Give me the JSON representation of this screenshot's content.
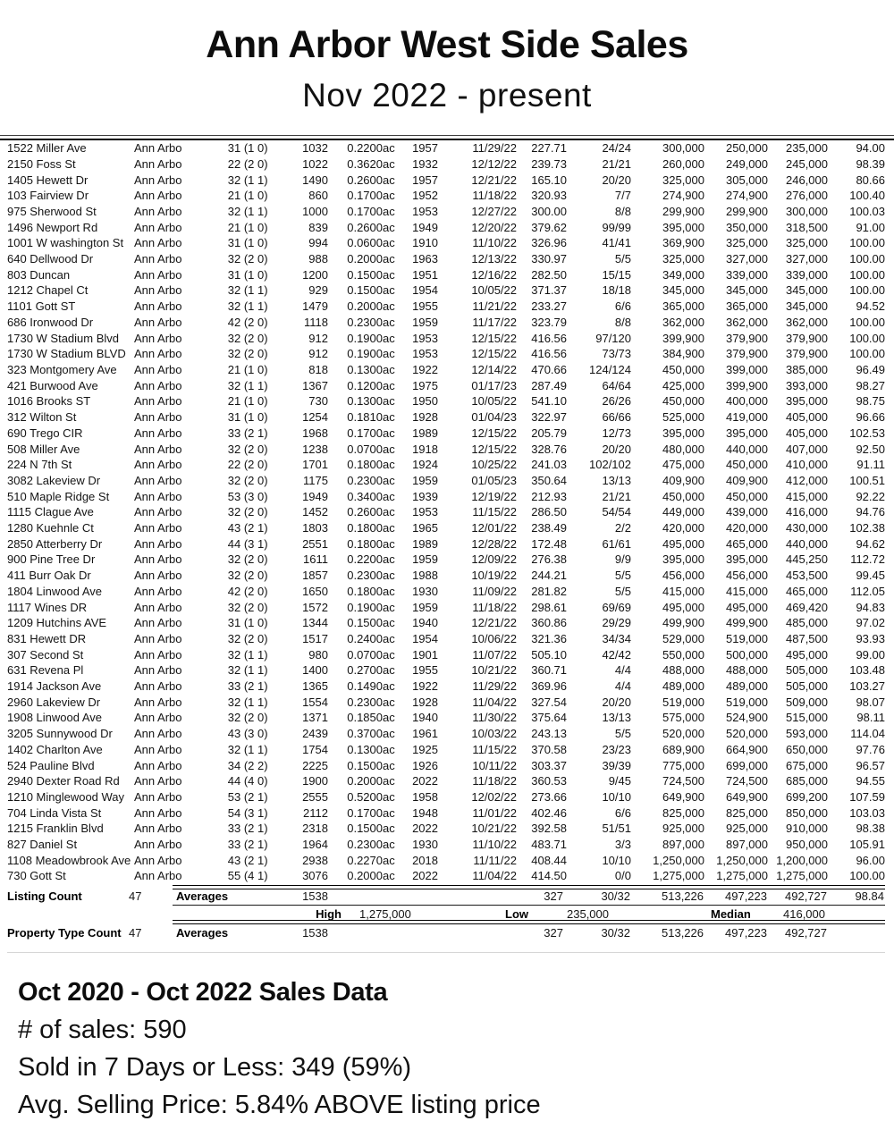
{
  "header": {
    "title": "Ann Arbor West Side Sales",
    "subtitle": "Nov 2022 - present"
  },
  "colors": {
    "text": "#000000",
    "rule": "#000000",
    "faint_rule": "#d6d6d6",
    "background": "#ffffff"
  },
  "table": {
    "columns": [
      "address",
      "city",
      "beds",
      "baths",
      "sqft",
      "acres",
      "acres-unit",
      "year-built",
      "sale-date",
      "price-per-sqft",
      "dom",
      "original-price",
      "list-price",
      "sold-price",
      "sold-pct"
    ],
    "rows": [
      [
        "1522 Miller Ave",
        "Ann Arbo",
        "3",
        "1 (1 0)",
        "1032",
        "0.2200",
        "ac",
        "1957",
        "11/29/22",
        "227.71",
        "24/24",
        "300,000",
        "250,000",
        "235,000",
        "94.00"
      ],
      [
        "2150 Foss St",
        "Ann Arbo",
        "2",
        "2 (2 0)",
        "1022",
        "0.3620",
        "ac",
        "1932",
        "12/12/22",
        "239.73",
        "21/21",
        "260,000",
        "249,000",
        "245,000",
        "98.39"
      ],
      [
        "1405 Hewett Dr",
        "Ann Arbo",
        "3",
        "2 (1 1)",
        "1490",
        "0.2600",
        "ac",
        "1957",
        "12/21/22",
        "165.10",
        "20/20",
        "325,000",
        "305,000",
        "246,000",
        "80.66"
      ],
      [
        "103 Fairview Dr",
        "Ann Arbo",
        "2",
        "1 (1 0)",
        "860",
        "0.1700",
        "ac",
        "1952",
        "11/18/22",
        "320.93",
        "7/7",
        "274,900",
        "274,900",
        "276,000",
        "100.40"
      ],
      [
        "975 Sherwood St",
        "Ann Arbo",
        "3",
        "2 (1 1)",
        "1000",
        "0.1700",
        "ac",
        "1953",
        "12/27/22",
        "300.00",
        "8/8",
        "299,900",
        "299,900",
        "300,000",
        "100.03"
      ],
      [
        "1496 Newport Rd",
        "Ann Arbo",
        "2",
        "1 (1 0)",
        "839",
        "0.2600",
        "ac",
        "1949",
        "12/20/22",
        "379.62",
        "99/99",
        "395,000",
        "350,000",
        "318,500",
        "91.00"
      ],
      [
        "1001 W washington St",
        "Ann Arbo",
        "3",
        "1 (1 0)",
        "994",
        "0.0600",
        "ac",
        "1910",
        "11/10/22",
        "326.96",
        "41/41",
        "369,900",
        "325,000",
        "325,000",
        "100.00"
      ],
      [
        "640 Dellwood Dr",
        "Ann Arbo",
        "3",
        "2 (2 0)",
        "988",
        "0.2000",
        "ac",
        "1963",
        "12/13/22",
        "330.97",
        "5/5",
        "325,000",
        "327,000",
        "327,000",
        "100.00"
      ],
      [
        "803 Duncan",
        "Ann Arbo",
        "3",
        "1 (1 0)",
        "1200",
        "0.1500",
        "ac",
        "1951",
        "12/16/22",
        "282.50",
        "15/15",
        "349,000",
        "339,000",
        "339,000",
        "100.00"
      ],
      [
        "1212 Chapel Ct",
        "Ann Arbo",
        "3",
        "2 (1 1)",
        "929",
        "0.1500",
        "ac",
        "1954",
        "10/05/22",
        "371.37",
        "18/18",
        "345,000",
        "345,000",
        "345,000",
        "100.00"
      ],
      [
        "1101 Gott ST",
        "Ann Arbo",
        "3",
        "2 (1 1)",
        "1479",
        "0.2000",
        "ac",
        "1955",
        "11/21/22",
        "233.27",
        "6/6",
        "365,000",
        "365,000",
        "345,000",
        "94.52"
      ],
      [
        "686 Ironwood Dr",
        "Ann Arbo",
        "4",
        "2 (2 0)",
        "1118",
        "0.2300",
        "ac",
        "1959",
        "11/17/22",
        "323.79",
        "8/8",
        "362,000",
        "362,000",
        "362,000",
        "100.00"
      ],
      [
        "1730 W Stadium Blvd",
        "Ann Arbo",
        "3",
        "2 (2 0)",
        "912",
        "0.1900",
        "ac",
        "1953",
        "12/15/22",
        "416.56",
        "97/120",
        "399,900",
        "379,900",
        "379,900",
        "100.00"
      ],
      [
        "1730 W Stadium BLVD",
        "Ann Arbo",
        "3",
        "2 (2 0)",
        "912",
        "0.1900",
        "ac",
        "1953",
        "12/15/22",
        "416.56",
        "73/73",
        "384,900",
        "379,900",
        "379,900",
        "100.00"
      ],
      [
        "323 Montgomery Ave",
        "Ann Arbo",
        "2",
        "1 (1 0)",
        "818",
        "0.1300",
        "ac",
        "1922",
        "12/14/22",
        "470.66",
        "124/124",
        "450,000",
        "399,000",
        "385,000",
        "96.49"
      ],
      [
        "421 Burwood Ave",
        "Ann Arbo",
        "3",
        "2 (1 1)",
        "1367",
        "0.1200",
        "ac",
        "1975",
        "01/17/23",
        "287.49",
        "64/64",
        "425,000",
        "399,900",
        "393,000",
        "98.27"
      ],
      [
        "1016 Brooks ST",
        "Ann Arbo",
        "2",
        "1 (1 0)",
        "730",
        "0.1300",
        "ac",
        "1950",
        "10/05/22",
        "541.10",
        "26/26",
        "450,000",
        "400,000",
        "395,000",
        "98.75"
      ],
      [
        "312 Wilton St",
        "Ann Arbo",
        "3",
        "1 (1 0)",
        "1254",
        "0.1810",
        "ac",
        "1928",
        "01/04/23",
        "322.97",
        "66/66",
        "525,000",
        "419,000",
        "405,000",
        "96.66"
      ],
      [
        "690 Trego CIR",
        "Ann Arbo",
        "3",
        "3 (2 1)",
        "1968",
        "0.1700",
        "ac",
        "1989",
        "12/15/22",
        "205.79",
        "12/73",
        "395,000",
        "395,000",
        "405,000",
        "102.53"
      ],
      [
        "508 Miller Ave",
        "Ann Arbo",
        "3",
        "2 (2 0)",
        "1238",
        "0.0700",
        "ac",
        "1918",
        "12/15/22",
        "328.76",
        "20/20",
        "480,000",
        "440,000",
        "407,000",
        "92.50"
      ],
      [
        "224 N 7th St",
        "Ann Arbo",
        "2",
        "2 (2 0)",
        "1701",
        "0.1800",
        "ac",
        "1924",
        "10/25/22",
        "241.03",
        "102/102",
        "475,000",
        "450,000",
        "410,000",
        "91.11"
      ],
      [
        "3082 Lakeview Dr",
        "Ann Arbo",
        "3",
        "2 (2 0)",
        "1175",
        "0.2300",
        "ac",
        "1959",
        "01/05/23",
        "350.64",
        "13/13",
        "409,900",
        "409,900",
        "412,000",
        "100.51"
      ],
      [
        "510 Maple Ridge St",
        "Ann Arbo",
        "5",
        "3 (3 0)",
        "1949",
        "0.3400",
        "ac",
        "1939",
        "12/19/22",
        "212.93",
        "21/21",
        "450,000",
        "450,000",
        "415,000",
        "92.22"
      ],
      [
        "1115 Clague Ave",
        "Ann Arbo",
        "3",
        "2 (2 0)",
        "1452",
        "0.2600",
        "ac",
        "1953",
        "11/15/22",
        "286.50",
        "54/54",
        "449,000",
        "439,000",
        "416,000",
        "94.76"
      ],
      [
        "1280 Kuehnle Ct",
        "Ann Arbo",
        "4",
        "3 (2 1)",
        "1803",
        "0.1800",
        "ac",
        "1965",
        "12/01/22",
        "238.49",
        "2/2",
        "420,000",
        "420,000",
        "430,000",
        "102.38"
      ],
      [
        "2850 Atterberry Dr",
        "Ann Arbo",
        "4",
        "4 (3 1)",
        "2551",
        "0.1800",
        "ac",
        "1989",
        "12/28/22",
        "172.48",
        "61/61",
        "495,000",
        "465,000",
        "440,000",
        "94.62"
      ],
      [
        "900 Pine Tree Dr",
        "Ann Arbo",
        "3",
        "2 (2 0)",
        "1611",
        "0.2200",
        "ac",
        "1959",
        "12/09/22",
        "276.38",
        "9/9",
        "395,000",
        "395,000",
        "445,250",
        "112.72"
      ],
      [
        "411 Burr Oak Dr",
        "Ann Arbo",
        "3",
        "2 (2 0)",
        "1857",
        "0.2300",
        "ac",
        "1988",
        "10/19/22",
        "244.21",
        "5/5",
        "456,000",
        "456,000",
        "453,500",
        "99.45"
      ],
      [
        "1804 Linwood Ave",
        "Ann Arbo",
        "4",
        "2 (2 0)",
        "1650",
        "0.1800",
        "ac",
        "1930",
        "11/09/22",
        "281.82",
        "5/5",
        "415,000",
        "415,000",
        "465,000",
        "112.05"
      ],
      [
        "1117 Wines DR",
        "Ann Arbo",
        "3",
        "2 (2 0)",
        "1572",
        "0.1900",
        "ac",
        "1959",
        "11/18/22",
        "298.61",
        "69/69",
        "495,000",
        "495,000",
        "469,420",
        "94.83"
      ],
      [
        "1209 Hutchins AVE",
        "Ann Arbo",
        "3",
        "1 (1 0)",
        "1344",
        "0.1500",
        "ac",
        "1940",
        "12/21/22",
        "360.86",
        "29/29",
        "499,900",
        "499,900",
        "485,000",
        "97.02"
      ],
      [
        "831 Hewett DR",
        "Ann Arbo",
        "3",
        "2 (2 0)",
        "1517",
        "0.2400",
        "ac",
        "1954",
        "10/06/22",
        "321.36",
        "34/34",
        "529,000",
        "519,000",
        "487,500",
        "93.93"
      ],
      [
        "307 Second St",
        "Ann Arbo",
        "3",
        "2 (1 1)",
        "980",
        "0.0700",
        "ac",
        "1901",
        "11/07/22",
        "505.10",
        "42/42",
        "550,000",
        "500,000",
        "495,000",
        "99.00"
      ],
      [
        "631 Revena Pl",
        "Ann Arbo",
        "3",
        "2 (1 1)",
        "1400",
        "0.2700",
        "ac",
        "1955",
        "10/21/22",
        "360.71",
        "4/4",
        "488,000",
        "488,000",
        "505,000",
        "103.48"
      ],
      [
        "1914 Jackson Ave",
        "Ann Arbo",
        "3",
        "3 (2 1)",
        "1365",
        "0.1490",
        "ac",
        "1922",
        "11/29/22",
        "369.96",
        "4/4",
        "489,000",
        "489,000",
        "505,000",
        "103.27"
      ],
      [
        "2960 Lakeview Dr",
        "Ann Arbo",
        "3",
        "2 (1 1)",
        "1554",
        "0.2300",
        "ac",
        "1928",
        "11/04/22",
        "327.54",
        "20/20",
        "519,000",
        "519,000",
        "509,000",
        "98.07"
      ],
      [
        "1908 Linwood Ave",
        "Ann Arbo",
        "3",
        "2 (2 0)",
        "1371",
        "0.1850",
        "ac",
        "1940",
        "11/30/22",
        "375.64",
        "13/13",
        "575,000",
        "524,900",
        "515,000",
        "98.11"
      ],
      [
        "3205 Sunnywood Dr",
        "Ann Arbo",
        "4",
        "3 (3 0)",
        "2439",
        "0.3700",
        "ac",
        "1961",
        "10/03/22",
        "243.13",
        "5/5",
        "520,000",
        "520,000",
        "593,000",
        "114.04"
      ],
      [
        "1402 Charlton Ave",
        "Ann Arbo",
        "3",
        "2 (1 1)",
        "1754",
        "0.1300",
        "ac",
        "1925",
        "11/15/22",
        "370.58",
        "23/23",
        "689,900",
        "664,900",
        "650,000",
        "97.76"
      ],
      [
        "524 Pauline Blvd",
        "Ann Arbo",
        "3",
        "4 (2 2)",
        "2225",
        "0.1500",
        "ac",
        "1926",
        "10/11/22",
        "303.37",
        "39/39",
        "775,000",
        "699,000",
        "675,000",
        "96.57"
      ],
      [
        "2940 Dexter Road Rd",
        "Ann Arbo",
        "4",
        "4 (4 0)",
        "1900",
        "0.2000",
        "ac",
        "2022",
        "11/18/22",
        "360.53",
        "9/45",
        "724,500",
        "724,500",
        "685,000",
        "94.55"
      ],
      [
        "1210 Minglewood Way",
        "Ann Arbo",
        "5",
        "3 (2 1)",
        "2555",
        "0.5200",
        "ac",
        "1958",
        "12/02/22",
        "273.66",
        "10/10",
        "649,900",
        "649,900",
        "699,200",
        "107.59"
      ],
      [
        "704 Linda Vista St",
        "Ann Arbo",
        "5",
        "4 (3 1)",
        "2112",
        "0.1700",
        "ac",
        "1948",
        "11/01/22",
        "402.46",
        "6/6",
        "825,000",
        "825,000",
        "850,000",
        "103.03"
      ],
      [
        "1215 Franklin Blvd",
        "Ann Arbo",
        "3",
        "3 (2 1)",
        "2318",
        "0.1500",
        "ac",
        "2022",
        "10/21/22",
        "392.58",
        "51/51",
        "925,000",
        "925,000",
        "910,000",
        "98.38"
      ],
      [
        "827 Daniel St",
        "Ann Arbo",
        "3",
        "3 (2 1)",
        "1964",
        "0.2300",
        "ac",
        "1930",
        "11/10/22",
        "483.71",
        "3/3",
        "897,000",
        "897,000",
        "950,000",
        "105.91"
      ],
      [
        "1108 Meadowbrook Ave",
        "Ann Arbo",
        "4",
        "3 (2 1)",
        "2938",
        "0.2270",
        "ac",
        "2018",
        "11/11/22",
        "408.44",
        "10/10",
        "1,250,000",
        "1,250,000",
        "1,200,000",
        "96.00"
      ],
      [
        "730 Gott St",
        "Ann Arbo",
        "5",
        "5 (4 1)",
        "3076",
        "0.2000",
        "ac",
        "2022",
        "11/04/22",
        "414.50",
        "0/0",
        "1,275,000",
        "1,275,000",
        "1,275,000",
        "100.00"
      ]
    ],
    "summary": {
      "listing_count_label": "Listing Count",
      "listing_count": "47",
      "averages_label": "Averages",
      "avg_sqft": "1538",
      "avg_price_per_sqft": "327",
      "avg_dom": "30/32",
      "avg_original_price": "513,226",
      "avg_list_price": "497,223",
      "avg_sold_price": "492,727",
      "avg_sold_pct": "98.84",
      "high_label": "High",
      "high_value": "1,275,000",
      "low_label": "Low",
      "low_value": "235,000",
      "median_label": "Median",
      "median_value": "416,000",
      "property_type_count_label": "Property Type Count",
      "property_type_count": "47"
    }
  },
  "footer_stats": {
    "heading": "Oct 2020 - Oct 2022 Sales Data",
    "lines": [
      "# of sales: 590",
      "Sold in 7 Days or Less: 349 (59%)",
      "Avg. Selling Price: 5.84% ABOVE listing price"
    ]
  }
}
